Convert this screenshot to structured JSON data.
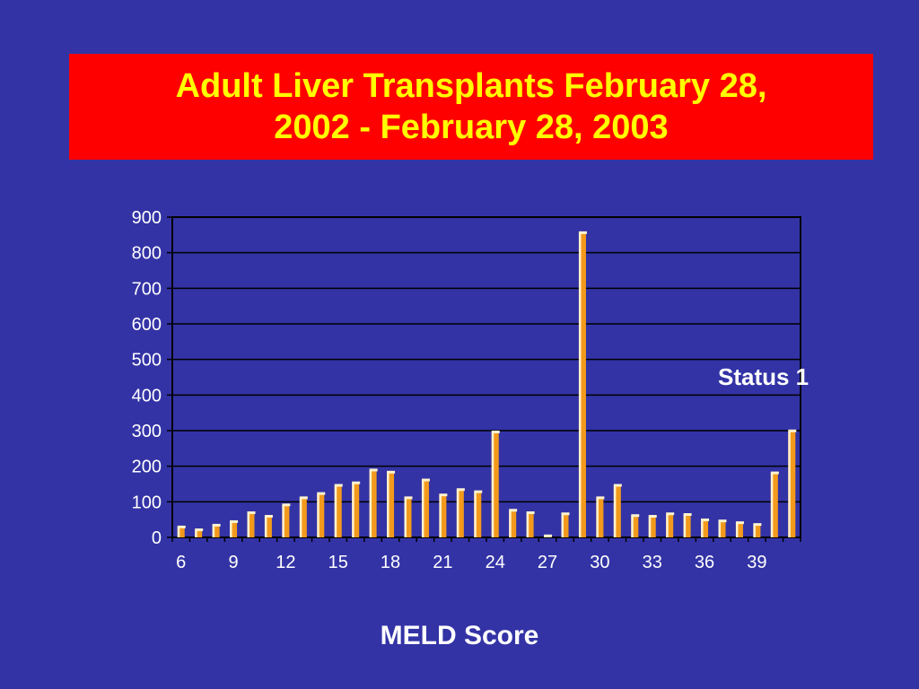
{
  "title_line1": "Adult Liver Transplants February 28,",
  "title_line2": "2002 - February  28, 2003",
  "annotation": "Status 1",
  "colors": {
    "background": "#3333a6",
    "title_box": "#ff0000",
    "title_text": "#ffff00",
    "bar": "#f39a1c",
    "bar_highlight": "#fff3cf",
    "plot_background": "#3333a6",
    "grid": "#000000",
    "text": "#ffffff"
  },
  "chart_data": {
    "type": "bar",
    "title": "Adult Liver Transplants February 28, 2002 - February  28, 2003",
    "xlabel": "MELD Score",
    "ylabel": "",
    "ylim": [
      0,
      900
    ],
    "yticks": [
      0,
      100,
      200,
      300,
      400,
      500,
      600,
      700,
      800,
      900
    ],
    "xtick_labels": [
      "6",
      "9",
      "12",
      "15",
      "18",
      "21",
      "24",
      "27",
      "30",
      "33",
      "36",
      "39"
    ],
    "grid": true,
    "categories": [
      "6",
      "7",
      "8",
      "9",
      "10",
      "11",
      "12",
      "13",
      "14",
      "15",
      "16",
      "17",
      "18",
      "19",
      "20",
      "21",
      "22",
      "23",
      "24",
      "25",
      "26",
      "27",
      "28",
      "29",
      "30",
      "31",
      "32",
      "33",
      "34",
      "35",
      "36",
      "37",
      "38",
      "39",
      "40",
      "Status 1"
    ],
    "values": [
      28,
      20,
      33,
      43,
      68,
      58,
      90,
      110,
      122,
      145,
      152,
      188,
      182,
      110,
      160,
      118,
      133,
      127,
      295,
      75,
      68,
      3,
      65,
      855,
      110,
      145,
      60,
      58,
      65,
      63,
      48,
      45,
      40,
      35,
      180,
      298
    ]
  }
}
